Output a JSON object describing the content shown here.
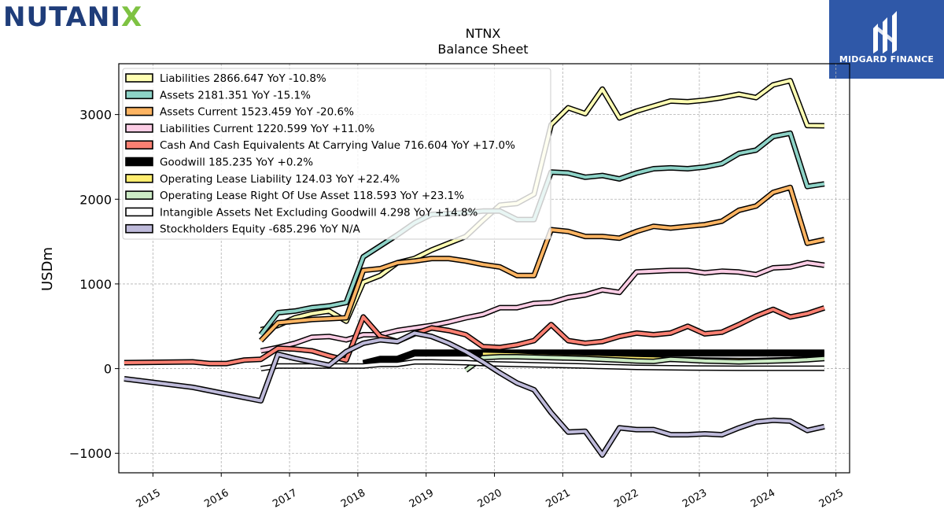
{
  "brand": {
    "left": "NUTANI",
    "x": "X"
  },
  "partner": {
    "name": "MIDGARD FINANCE"
  },
  "chart_data": {
    "type": "line",
    "title": "NTNX",
    "subtitle": "Balance  Sheet",
    "ylabel": "USDm",
    "xlabel": "",
    "xlim": [
      2014.5,
      2025.2
    ],
    "ylim": [
      -1230,
      3600
    ],
    "yticks": [
      -1000,
      0,
      1000,
      2000,
      3000
    ],
    "ytick_labels": [
      "−1000",
      "0",
      "1000",
      "2000",
      "3000"
    ],
    "xticks": [
      2015,
      2016,
      2017,
      2018,
      2019,
      2020,
      2021,
      2022,
      2023,
      2024,
      2025
    ],
    "xtick_labels": [
      "2015",
      "2016",
      "2017",
      "2018",
      "2019",
      "2020",
      "2021",
      "2022",
      "2023",
      "2024",
      "2025"
    ],
    "grid": true,
    "legend_position": "top-left",
    "series": [
      {
        "name": "Liabilities",
        "legend": "Liabilities  2866.647 YoY -10.8%",
        "color": "#ffffb3",
        "x": [
          2016.58,
          2016.83,
          2017.08,
          2017.33,
          2017.58,
          2017.83,
          2018.08,
          2018.33,
          2018.58,
          2018.83,
          2019.08,
          2019.33,
          2019.58,
          2019.83,
          2020.08,
          2020.33,
          2020.58,
          2020.83,
          2021.08,
          2021.33,
          2021.58,
          2021.83,
          2022.08,
          2022.33,
          2022.58,
          2022.83,
          2023.08,
          2023.33,
          2023.58,
          2023.83,
          2024.08,
          2024.33,
          2024.58,
          2024.83
        ],
        "y": [
          460,
          510,
          600,
          650,
          680,
          560,
          1020,
          1100,
          1250,
          1300,
          1400,
          1480,
          1560,
          1750,
          1930,
          1950,
          2060,
          2880,
          3080,
          3010,
          3300,
          2960,
          3040,
          3100,
          3160,
          3150,
          3170,
          3200,
          3240,
          3200,
          3350,
          3400,
          2870,
          2867
        ]
      },
      {
        "name": "Assets",
        "legend": "Assets  2181.351 YoY -15.1%",
        "color": "#8dd3c7",
        "x": [
          2016.58,
          2016.83,
          2017.08,
          2017.33,
          2017.58,
          2017.83,
          2018.08,
          2018.33,
          2018.58,
          2018.83,
          2019.08,
          2019.33,
          2019.58,
          2019.83,
          2020.08,
          2020.33,
          2020.58,
          2020.83,
          2021.08,
          2021.33,
          2021.58,
          2021.83,
          2022.08,
          2022.33,
          2022.58,
          2022.83,
          2023.08,
          2023.33,
          2023.58,
          2023.83,
          2024.08,
          2024.33,
          2024.58,
          2024.83
        ],
        "y": [
          400,
          660,
          680,
          720,
          740,
          780,
          1320,
          1450,
          1580,
          1720,
          1820,
          1830,
          1840,
          1860,
          1860,
          1760,
          1760,
          2320,
          2310,
          2260,
          2280,
          2240,
          2310,
          2360,
          2370,
          2360,
          2380,
          2420,
          2540,
          2580,
          2740,
          2780,
          2150,
          2181
        ]
      },
      {
        "name": "Assets Current",
        "legend": "Assets Current  1523.459 YoY -20.6%",
        "color": "#fdb462",
        "x": [
          2016.58,
          2016.83,
          2017.08,
          2017.33,
          2017.58,
          2017.83,
          2018.08,
          2018.33,
          2018.58,
          2018.83,
          2019.08,
          2019.33,
          2019.58,
          2019.83,
          2020.08,
          2020.33,
          2020.58,
          2020.83,
          2021.08,
          2021.33,
          2021.58,
          2021.83,
          2022.08,
          2022.33,
          2022.58,
          2022.83,
          2023.08,
          2023.33,
          2023.58,
          2023.83,
          2024.08,
          2024.33,
          2024.58,
          2024.83
        ],
        "y": [
          330,
          540,
          560,
          580,
          590,
          600,
          1160,
          1180,
          1250,
          1270,
          1300,
          1300,
          1270,
          1230,
          1200,
          1100,
          1100,
          1640,
          1620,
          1560,
          1560,
          1540,
          1620,
          1680,
          1660,
          1680,
          1700,
          1740,
          1870,
          1920,
          2080,
          2140,
          1480,
          1523
        ]
      },
      {
        "name": "Liabilities Current",
        "legend": "Liabilities Current  1220.599 YoY +11.0%",
        "color": "#fccde5",
        "x": [
          2016.58,
          2016.83,
          2017.08,
          2017.33,
          2017.58,
          2017.83,
          2018.08,
          2018.33,
          2018.58,
          2018.83,
          2019.08,
          2019.33,
          2019.58,
          2019.83,
          2020.08,
          2020.33,
          2020.58,
          2020.83,
          2021.08,
          2021.33,
          2021.58,
          2021.83,
          2022.08,
          2022.33,
          2022.58,
          2022.83,
          2023.08,
          2023.33,
          2023.58,
          2023.83,
          2024.08,
          2024.33,
          2024.58,
          2024.83
        ],
        "y": [
          210,
          250,
          300,
          370,
          380,
          340,
          400,
          400,
          450,
          480,
          510,
          550,
          600,
          640,
          720,
          720,
          770,
          780,
          840,
          870,
          930,
          900,
          1140,
          1150,
          1160,
          1160,
          1130,
          1150,
          1140,
          1110,
          1190,
          1200,
          1250,
          1221
        ]
      },
      {
        "name": "Cash And Cash Equivalents At Carrying Value",
        "legend": "Cash And Cash Equivalents At Carrying Value  716.604 YoY +17.0%",
        "color": "#fb8072",
        "x": [
          2014.58,
          2015.58,
          2015.83,
          2016.08,
          2016.33,
          2016.58,
          2016.83,
          2017.08,
          2017.33,
          2017.58,
          2017.83,
          2018.08,
          2018.33,
          2018.58,
          2018.83,
          2019.08,
          2019.33,
          2019.58,
          2019.83,
          2020.08,
          2020.33,
          2020.58,
          2020.83,
          2021.08,
          2021.33,
          2021.58,
          2021.83,
          2022.08,
          2022.33,
          2022.58,
          2022.83,
          2023.08,
          2023.33,
          2023.58,
          2023.83,
          2024.08,
          2024.33,
          2024.58,
          2024.83
        ],
        "y": [
          70,
          80,
          60,
          60,
          100,
          110,
          240,
          230,
          210,
          150,
          100,
          610,
          380,
          320,
          410,
          480,
          450,
          400,
          260,
          250,
          280,
          330,
          520,
          330,
          300,
          320,
          380,
          420,
          400,
          420,
          500,
          410,
          430,
          520,
          620,
          700,
          610,
          650,
          717
        ]
      },
      {
        "name": "Goodwill",
        "legend": "Goodwill  185.235 YoY +0.2%",
        "color": "#000000",
        "x": [
          2018.08,
          2018.33,
          2018.58,
          2018.83,
          2019.08,
          2019.33,
          2019.58,
          2019.83,
          2020.08,
          2020.33,
          2020.58,
          2020.83,
          2021.08,
          2021.33,
          2021.58,
          2021.83,
          2022.08,
          2022.33,
          2022.58,
          2022.83,
          2023.08,
          2023.33,
          2023.58,
          2023.83,
          2024.08,
          2024.33,
          2024.58,
          2024.83
        ],
        "y": [
          60,
          110,
          110,
          185,
          185,
          185,
          185,
          185,
          185,
          185,
          185,
          185,
          185,
          185,
          185,
          185,
          185,
          185,
          185,
          185,
          185,
          185,
          185,
          185,
          185,
          185,
          185,
          185
        ]
      },
      {
        "name": "Operating Lease Liability",
        "legend": "Operating Lease Liability  124.03 YoY +22.4%",
        "color": "#ffed6f",
        "x": [
          2019.83,
          2020.08,
          2020.33,
          2020.58,
          2020.83,
          2021.08,
          2021.33,
          2021.58,
          2021.83,
          2022.08,
          2022.33,
          2022.58,
          2022.83,
          2023.08,
          2023.33,
          2023.58,
          2023.83,
          2024.08,
          2024.33,
          2024.58,
          2024.83
        ],
        "y": [
          170,
          165,
          160,
          150,
          145,
          140,
          135,
          130,
          125,
          120,
          115,
          110,
          105,
          100,
          98,
          96,
          95,
          100,
          105,
          115,
          124
        ]
      },
      {
        "name": "Operating Lease Right Of Use Asset",
        "legend": "Operating Lease Right Of Use Asset  118.593 YoY +23.1%",
        "color": "#ccebc5",
        "x": [
          2019.58,
          2019.83,
          2020.08,
          2020.33,
          2020.58,
          2020.83,
          2021.08,
          2021.33,
          2021.58,
          2021.83,
          2022.08,
          2022.33,
          2022.58,
          2022.83,
          2023.08,
          2023.33,
          2023.58,
          2023.83,
          2024.08,
          2024.33,
          2024.58,
          2024.83
        ],
        "y": [
          -20,
          130,
          140,
          140,
          135,
          130,
          125,
          120,
          110,
          100,
          90,
          85,
          110,
          100,
          90,
          85,
          80,
          85,
          90,
          95,
          105,
          119
        ]
      },
      {
        "name": "Intangible Assets Net Excluding Goodwill",
        "legend": "Intangible Assets Net Excluding Goodwill  4.298 YoY +14.8%",
        "color": "#ffffff",
        "x": [
          2016.58,
          2016.83,
          2017.08,
          2017.33,
          2017.58,
          2017.83,
          2018.08,
          2018.33,
          2018.58,
          2018.83,
          2019.08,
          2019.33,
          2019.58,
          2019.83,
          2020.08,
          2020.33,
          2020.58,
          2020.83,
          2021.08,
          2021.33,
          2021.58,
          2021.83,
          2022.08,
          2022.33,
          2022.58,
          2022.83,
          2023.08,
          2023.33,
          2023.58,
          2023.83,
          2024.08,
          2024.33,
          2024.58,
          2024.83
        ],
        "y": [
          0,
          30,
          30,
          30,
          30,
          30,
          30,
          50,
          50,
          80,
          80,
          75,
          70,
          60,
          55,
          50,
          45,
          40,
          35,
          30,
          25,
          20,
          15,
          12,
          10,
          8,
          6,
          5,
          4,
          4,
          4,
          4,
          4,
          4
        ]
      },
      {
        "name": "Stockholders Equity",
        "legend": "Stockholders Equity  -685.296 YoY N/A",
        "color": "#bebada",
        "x": [
          2014.58,
          2015.58,
          2016.08,
          2016.58,
          2016.83,
          2017.08,
          2017.33,
          2017.58,
          2017.83,
          2018.08,
          2018.33,
          2018.58,
          2018.83,
          2019.08,
          2019.33,
          2019.58,
          2019.83,
          2020.08,
          2020.33,
          2020.58,
          2020.83,
          2021.08,
          2021.33,
          2021.58,
          2021.83,
          2022.08,
          2022.33,
          2022.58,
          2022.83,
          2023.08,
          2023.33,
          2023.58,
          2023.83,
          2024.08,
          2024.33,
          2024.58,
          2024.83
        ],
        "y": [
          -120,
          -220,
          -300,
          -380,
          170,
          120,
          80,
          40,
          200,
          300,
          340,
          320,
          420,
          380,
          300,
          200,
          80,
          -50,
          -170,
          -250,
          -520,
          -750,
          -740,
          -1020,
          -700,
          -720,
          -720,
          -780,
          -780,
          -770,
          -780,
          -700,
          -630,
          -610,
          -620,
          -730,
          -685
        ]
      }
    ]
  }
}
